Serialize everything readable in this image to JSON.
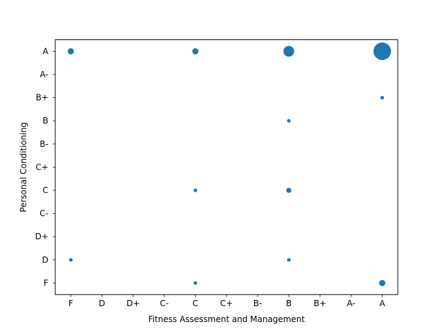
{
  "chart_data": {
    "type": "scatter",
    "title": "",
    "xlabel": "Fitness Assessment and Management",
    "ylabel": "Personal Conditioning",
    "x_categories": [
      "F",
      "D",
      "D+",
      "C-",
      "C",
      "C+",
      "B-",
      "B",
      "B+",
      "A-",
      "A"
    ],
    "y_categories": [
      "F",
      "D",
      "D+",
      "C-",
      "C",
      "C+",
      "B-",
      "B",
      "B+",
      "A-",
      "A"
    ],
    "points": [
      {
        "x": "F",
        "y": "A",
        "count": 3
      },
      {
        "x": "C",
        "y": "A",
        "count": 3
      },
      {
        "x": "B",
        "y": "A",
        "count": 9
      },
      {
        "x": "A",
        "y": "A",
        "count": 24
      },
      {
        "x": "A",
        "y": "B+",
        "count": 1
      },
      {
        "x": "B",
        "y": "B",
        "count": 1
      },
      {
        "x": "C",
        "y": "C",
        "count": 1
      },
      {
        "x": "B",
        "y": "C",
        "count": 2
      },
      {
        "x": "F",
        "y": "D",
        "count": 1
      },
      {
        "x": "B",
        "y": "D",
        "count": 1
      },
      {
        "x": "C",
        "y": "F",
        "count": 1
      },
      {
        "x": "A",
        "y": "F",
        "count": 3
      }
    ],
    "grid": false,
    "marker_color": "#1f77b4"
  }
}
